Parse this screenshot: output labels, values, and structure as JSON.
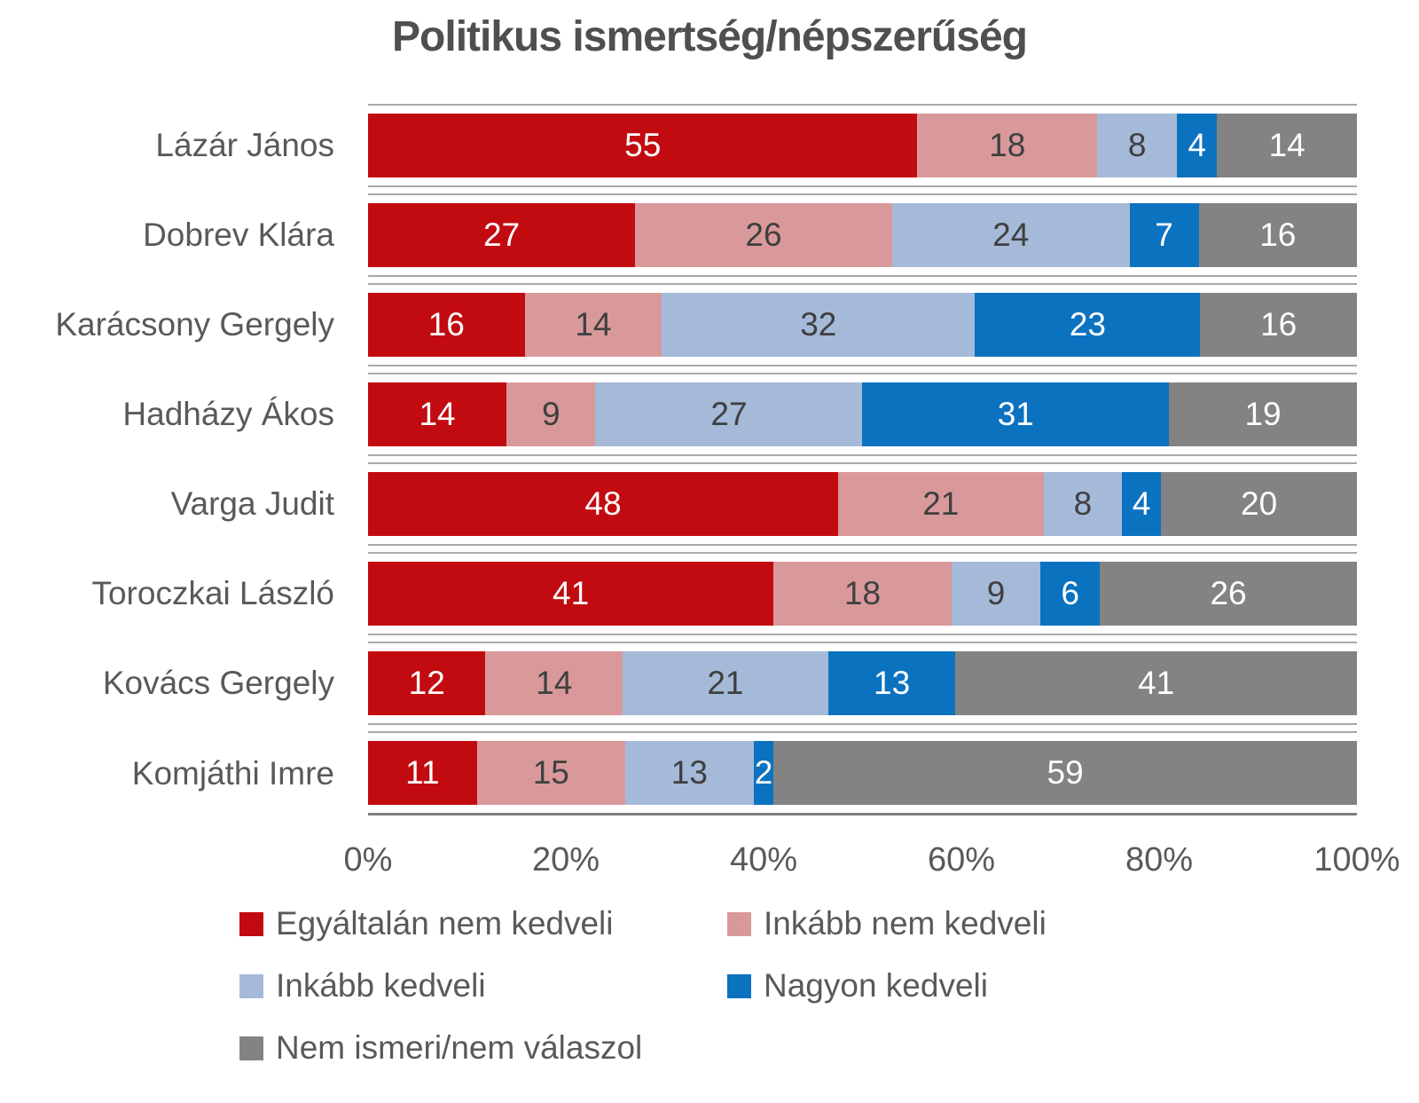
{
  "title": "Politikus ismertség/népszerűség",
  "colors": {
    "title_text": "#4f4f4f",
    "axis_text": "#595959",
    "row_border": "#a9a9a9",
    "axis_line": "#7f7f7f",
    "value_text_dark": "#3f3f3f",
    "value_text_light": "#ffffff"
  },
  "chart_data": {
    "type": "bar",
    "orientation": "horizontal",
    "stacked": true,
    "title": "Politikus ismertség/népszerűség",
    "categories": [
      "Lázár János",
      "Dobrev Klára",
      "Karácsony Gergely",
      "Hadházy Ákos",
      "Varga Judit",
      "Toroczkai László",
      "Kovács Gergely",
      "Komjáthi Imre"
    ],
    "series": [
      {
        "name": "Egyáltalán nem kedveli",
        "color": "#c20b10",
        "label_color": "#ffffff",
        "values": [
          55,
          27,
          16,
          14,
          48,
          41,
          12,
          11
        ]
      },
      {
        "name": "Inkább nem kedveli",
        "color": "#d9999b",
        "label_color": "#3f3f3f",
        "values": [
          18,
          26,
          14,
          9,
          21,
          18,
          14,
          15
        ]
      },
      {
        "name": "Inkább kedveli",
        "color": "#a4bad8",
        "label_color": "#3f3f3f",
        "values": [
          8,
          24,
          32,
          27,
          8,
          9,
          21,
          13
        ]
      },
      {
        "name": "Nagyon kedveli",
        "color": "#0b72c0",
        "label_color": "#ffffff",
        "values": [
          4,
          7,
          23,
          31,
          4,
          6,
          13,
          2
        ]
      },
      {
        "name": "Nem ismeri/nem válaszol",
        "color": "#838383",
        "label_color": "#ffffff",
        "values": [
          14,
          16,
          16,
          19,
          20,
          26,
          41,
          59
        ]
      }
    ],
    "x_ticks": [
      "0%",
      "20%",
      "40%",
      "60%",
      "80%",
      "100%"
    ],
    "xlim": [
      0,
      100
    ],
    "grid": "category-separators",
    "legend_position": "bottom"
  }
}
